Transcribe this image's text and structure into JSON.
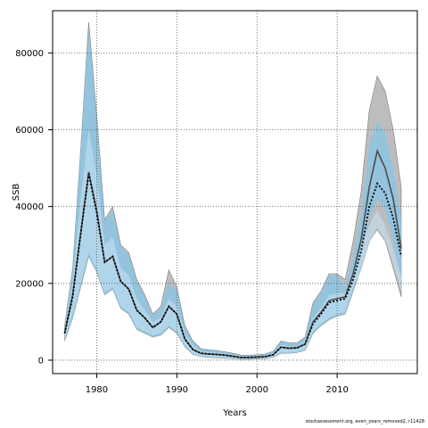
{
  "chart_data": {
    "type": "area",
    "title": "",
    "xlabel": "Years",
    "ylabel": "SSB",
    "xlim": [
      1974.5,
      2020
    ],
    "ylim": [
      -3500,
      91000
    ],
    "x_ticks": [
      1980,
      1990,
      2000,
      2010
    ],
    "y_ticks": [
      0,
      20000,
      40000,
      60000,
      80000
    ],
    "grid": true,
    "legend": "none",
    "colors": {
      "outer_band": "#bdbdbd",
      "outer_band_line": "#7a7a7a",
      "blue_band": "#8fc3e0",
      "light_blue_band": "#c6e4f6",
      "median_line": "#4a4a4a",
      "dotted_line": "#000000",
      "grid": "#555555"
    },
    "x": [
      1976,
      1977,
      1978,
      1979,
      1980,
      1981,
      1982,
      1983,
      1984,
      1985,
      1986,
      1987,
      1988,
      1989,
      1990,
      1991,
      1992,
      1993,
      1994,
      1995,
      1996,
      1997,
      1998,
      1999,
      2000,
      2001,
      2002,
      2003,
      2004,
      2005,
      2006,
      2007,
      2008,
      2009,
      2010,
      2011,
      2012,
      2013,
      2014,
      2015,
      2016,
      2017,
      2018
    ],
    "series": [
      {
        "lower": [
          5000,
          11000,
          19000,
          27000,
          23000,
          17000,
          18500,
          13500,
          12000,
          8000,
          7000,
          6000,
          6500,
          8500,
          7000,
          3500,
          1500,
          900,
          700,
          600,
          500,
          300,
          200,
          200,
          300,
          300,
          700,
          1800,
          1800,
          2000,
          2600,
          7000,
          9000,
          10500,
          11500,
          12000,
          18000,
          24000,
          31000,
          34000,
          31000,
          24000,
          16500
        ],
        "upper": [
          9000,
          24000,
          55000,
          88000,
          64000,
          36500,
          40000,
          30000,
          28000,
          21000,
          17000,
          12000,
          14000,
          23500,
          19000,
          9000,
          5000,
          3000,
          2700,
          2500,
          2200,
          1800,
          1300,
          1300,
          1400,
          1600,
          2300,
          5000,
          4500,
          4500,
          6000,
          15000,
          18000,
          22500,
          22500,
          21000,
          31000,
          44000,
          65000,
          74000,
          70000,
          60000,
          45000
        ],
        "mid_lower": [
          5000,
          11000,
          19000,
          27000,
          23000,
          17000,
          18500,
          13500,
          12000,
          8000,
          7000,
          6000,
          6500,
          8500,
          7000,
          3500,
          1500,
          900,
          700,
          600,
          500,
          300,
          200,
          200,
          300,
          300,
          700,
          1800,
          1800,
          2000,
          2600,
          7000,
          9000,
          10500,
          11500,
          12000,
          18000,
          25000,
          37000,
          42000,
          39000,
          31000,
          20000
        ],
        "mid_upper": [
          9000,
          24000,
          55000,
          87000,
          63000,
          36000,
          39000,
          29500,
          27500,
          20500,
          16500,
          11500,
          13500,
          20000,
          18000,
          8500,
          4800,
          2900,
          2600,
          2400,
          2100,
          1700,
          1200,
          1200,
          1300,
          1500,
          2200,
          4800,
          4300,
          4300,
          5800,
          14500,
          17500,
          22000,
          22000,
          19000,
          27000,
          38000,
          56000,
          62000,
          59000,
          50000,
          37000
        ],
        "light_lower": [
          5500,
          12000,
          20000,
          28000,
          23500,
          17500,
          19000,
          14000,
          12500,
          8500,
          7500,
          6500,
          7000,
          9000,
          7500,
          3800,
          1700,
          1000,
          800,
          700,
          600,
          400,
          300,
          300,
          400,
          400,
          800,
          2000,
          2000,
          2200,
          2800,
          7500,
          9500,
          11000,
          12000,
          12500,
          19000,
          23000,
          30000,
          34500,
          31000,
          25000,
          18000
        ],
        "light_upper": [
          7500,
          20000,
          42000,
          60000,
          48000,
          30000,
          32000,
          24000,
          22000,
          16000,
          13000,
          10000,
          11000,
          16000,
          14000,
          7000,
          3800,
          2300,
          2000,
          1900,
          1700,
          1400,
          1000,
          1000,
          1100,
          1200,
          1800,
          4000,
          3600,
          3600,
          5000,
          11000,
          13500,
          17000,
          17500,
          17500,
          22000,
          30000,
          35000,
          39000,
          35000,
          29000,
          22000
        ],
        "median": [
          7000,
          17000,
          33000,
          49000,
          39000,
          25500,
          27000,
          20500,
          18500,
          13000,
          11000,
          8500,
          10000,
          14000,
          12000,
          5500,
          2800,
          1800,
          1600,
          1500,
          1300,
          1000,
          700,
          700,
          800,
          900,
          1400,
          3400,
          3100,
          3200,
          4200,
          10000,
          12500,
          15500,
          16000,
          16500,
          22500,
          31500,
          45000,
          54500,
          50000,
          42000,
          29000
        ],
        "dotted": [
          7000,
          16500,
          33000,
          48500,
          38500,
          25500,
          27000,
          20500,
          18500,
          13000,
          11000,
          8500,
          10000,
          14000,
          12000,
          5500,
          2800,
          1800,
          1600,
          1500,
          1300,
          1000,
          700,
          700,
          800,
          900,
          1400,
          3400,
          3100,
          3200,
          4200,
          9500,
          12000,
          15000,
          15500,
          16000,
          21000,
          28500,
          40000,
          46000,
          43500,
          37000,
          27000
        ]
      }
    ]
  },
  "footnote": "stockassessment.org, even_years_removed2, r11428"
}
